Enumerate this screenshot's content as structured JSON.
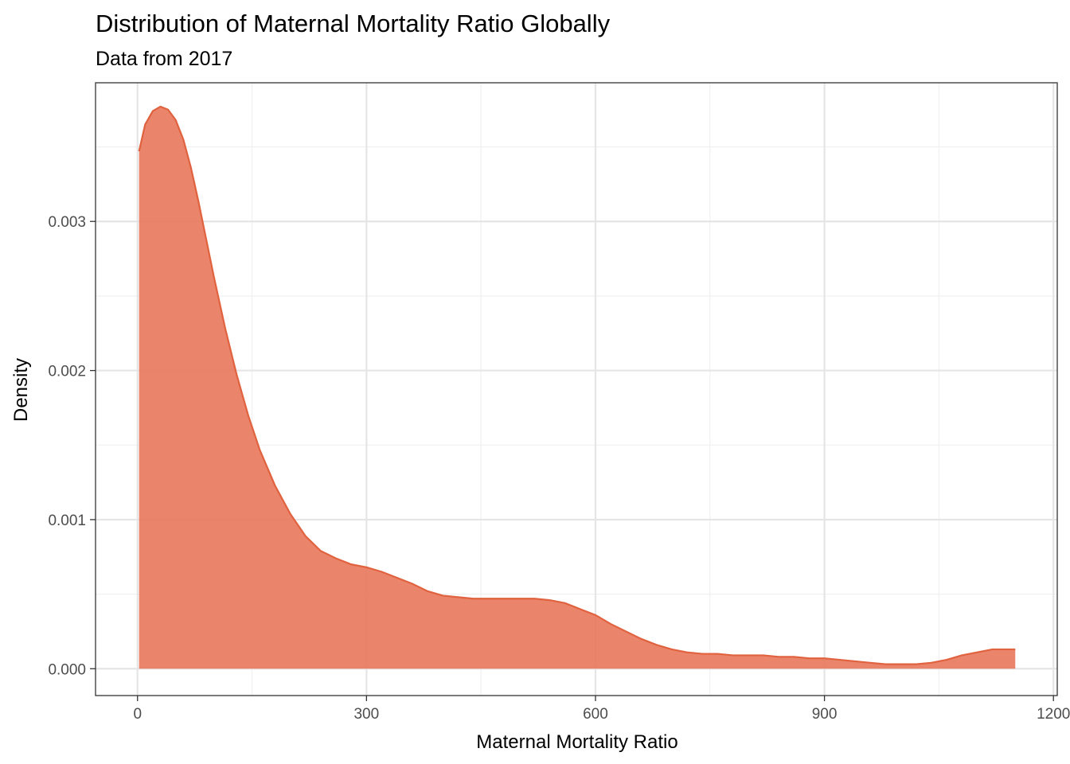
{
  "colors": {
    "fill": "#e8785b",
    "stroke": "#e0623f"
  },
  "chart_data": {
    "type": "area",
    "title": "Distribution of Maternal Mortality Ratio Globally",
    "subtitle": "Data from 2017",
    "xlabel": "Maternal Mortality Ratio",
    "ylabel": "Density",
    "xlim": [
      -55,
      1205
    ],
    "ylim": [
      -0.00018,
      0.00393
    ],
    "x_ticks": [
      0,
      300,
      600,
      900,
      1200
    ],
    "x_tick_labels": [
      "0",
      "300",
      "600",
      "900",
      "1200"
    ],
    "x_minor": [
      150,
      450,
      750,
      1050
    ],
    "y_ticks": [
      0,
      0.001,
      0.002,
      0.003
    ],
    "y_tick_labels": [
      "0.000",
      "0.001",
      "0.002",
      "0.003"
    ],
    "y_minor": [
      0.0005,
      0.0015,
      0.0025,
      0.0035
    ],
    "grid": true,
    "series": [
      {
        "x": [
          2,
          10,
          20,
          30,
          40,
          50,
          60,
          70,
          80,
          90,
          100,
          115,
          130,
          145,
          160,
          180,
          200,
          220,
          240,
          260,
          280,
          300,
          320,
          340,
          360,
          380,
          400,
          420,
          440,
          460,
          480,
          500,
          520,
          540,
          560,
          580,
          600,
          620,
          640,
          660,
          680,
          700,
          720,
          740,
          760,
          780,
          800,
          820,
          840,
          860,
          880,
          900,
          920,
          940,
          960,
          980,
          1000,
          1020,
          1040,
          1060,
          1080,
          1100,
          1120,
          1140,
          1150
        ],
        "y": [
          0.00347,
          0.00365,
          0.00374,
          0.00377,
          0.00375,
          0.00368,
          0.00355,
          0.00336,
          0.00313,
          0.00288,
          0.00263,
          0.00228,
          0.00197,
          0.0017,
          0.00147,
          0.00123,
          0.00104,
          0.00089,
          0.00079,
          0.00074,
          0.0007,
          0.00068,
          0.00065,
          0.00061,
          0.00057,
          0.00052,
          0.00049,
          0.00048,
          0.00047,
          0.00047,
          0.00047,
          0.00047,
          0.00047,
          0.00046,
          0.00044,
          0.0004,
          0.00036,
          0.0003,
          0.00025,
          0.0002,
          0.00016,
          0.00013,
          0.00011,
          0.0001,
          0.0001,
          9e-05,
          9e-05,
          9e-05,
          8e-05,
          8e-05,
          7e-05,
          7e-05,
          6e-05,
          5e-05,
          4e-05,
          3e-05,
          3e-05,
          3e-05,
          4e-05,
          6e-05,
          9e-05,
          0.00011,
          0.00013,
          0.00013,
          0.00013
        ]
      }
    ]
  }
}
